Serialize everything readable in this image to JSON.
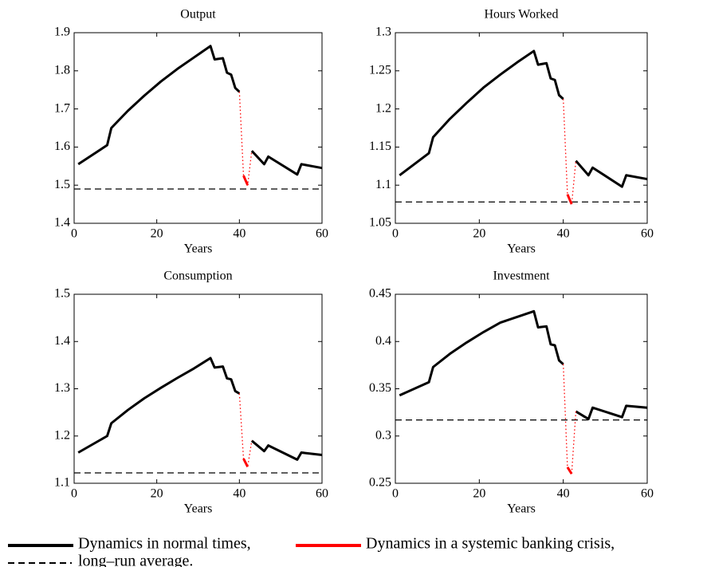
{
  "chart_data": [
    {
      "type": "line",
      "title": "Output",
      "xlabel": "Years",
      "xlim": [
        0,
        60
      ],
      "xticks": [
        0,
        20,
        40,
        60
      ],
      "ylim": [
        1.4,
        1.9
      ],
      "yticks": [
        1.4,
        1.5,
        1.6,
        1.7,
        1.8,
        1.9
      ],
      "x": [
        1,
        8,
        9,
        13,
        17,
        21,
        25,
        29,
        33,
        34,
        36,
        37,
        38,
        39,
        40,
        41,
        42,
        43,
        46,
        47,
        54,
        55,
        60
      ],
      "series": [
        {
          "color": "#000000",
          "style": "solid",
          "values": [
            1.555,
            1.605,
            1.65,
            1.695,
            1.735,
            1.772,
            1.805,
            1.835,
            1.865,
            1.83,
            1.833,
            1.795,
            1.79,
            1.755,
            1.745,
            null,
            null,
            1.59,
            1.555,
            1.575,
            1.528,
            1.555,
            1.545
          ]
        },
        {
          "color": "#ff0000",
          "style": "dotted",
          "values": [
            null,
            null,
            null,
            null,
            null,
            null,
            null,
            null,
            null,
            null,
            null,
            null,
            null,
            null,
            1.745,
            1.525,
            1.5,
            1.59,
            null,
            null,
            null,
            null,
            null
          ]
        },
        {
          "color": "#ff0000",
          "style": "solid",
          "values": [
            null,
            null,
            null,
            null,
            null,
            null,
            null,
            null,
            null,
            null,
            null,
            null,
            null,
            null,
            null,
            1.525,
            1.5,
            null,
            null,
            null,
            null,
            null,
            null
          ]
        }
      ],
      "average": 1.49
    },
    {
      "type": "line",
      "title": "Hours Worked",
      "xlabel": "Years",
      "xlim": [
        0,
        60
      ],
      "xticks": [
        0,
        20,
        40,
        60
      ],
      "ylim": [
        1.05,
        1.3
      ],
      "yticks": [
        1.05,
        1.1,
        1.15,
        1.2,
        1.25,
        1.3
      ],
      "x": [
        1,
        8,
        9,
        13,
        17,
        21,
        25,
        29,
        33,
        34,
        36,
        37,
        38,
        39,
        40,
        41,
        42,
        43,
        46,
        47,
        54,
        55,
        60
      ],
      "series": [
        {
          "color": "#000000",
          "style": "solid",
          "values": [
            1.113,
            1.142,
            1.163,
            1.187,
            1.208,
            1.228,
            1.245,
            1.261,
            1.276,
            1.258,
            1.26,
            1.24,
            1.238,
            1.218,
            1.213,
            null,
            null,
            1.132,
            1.113,
            1.123,
            1.098,
            1.113,
            1.108
          ]
        },
        {
          "color": "#ff0000",
          "style": "dotted",
          "values": [
            null,
            null,
            null,
            null,
            null,
            null,
            null,
            null,
            null,
            null,
            null,
            null,
            null,
            null,
            1.213,
            1.088,
            1.075,
            1.132,
            null,
            null,
            null,
            null,
            null
          ]
        },
        {
          "color": "#ff0000",
          "style": "solid",
          "values": [
            null,
            null,
            null,
            null,
            null,
            null,
            null,
            null,
            null,
            null,
            null,
            null,
            null,
            null,
            null,
            1.088,
            1.075,
            null,
            null,
            null,
            null,
            null,
            null
          ]
        }
      ],
      "average": 1.078
    },
    {
      "type": "line",
      "title": "Consumption",
      "xlabel": "Years",
      "xlim": [
        0,
        60
      ],
      "xticks": [
        0,
        20,
        40,
        60
      ],
      "ylim": [
        1.1,
        1.5
      ],
      "yticks": [
        1.1,
        1.2,
        1.3,
        1.4,
        1.5
      ],
      "x": [
        1,
        8,
        9,
        13,
        17,
        21,
        25,
        29,
        33,
        34,
        36,
        37,
        38,
        39,
        40,
        41,
        42,
        43,
        46,
        47,
        54,
        55,
        60
      ],
      "series": [
        {
          "color": "#000000",
          "style": "solid",
          "values": [
            1.165,
            1.2,
            1.227,
            1.255,
            1.28,
            1.302,
            1.323,
            1.343,
            1.365,
            1.345,
            1.347,
            1.322,
            1.32,
            1.295,
            1.29,
            null,
            null,
            1.19,
            1.168,
            1.18,
            1.15,
            1.165,
            1.16
          ]
        },
        {
          "color": "#ff0000",
          "style": "dotted",
          "values": [
            null,
            null,
            null,
            null,
            null,
            null,
            null,
            null,
            null,
            null,
            null,
            null,
            null,
            null,
            1.29,
            1.152,
            1.135,
            1.19,
            null,
            null,
            null,
            null,
            null
          ]
        },
        {
          "color": "#ff0000",
          "style": "solid",
          "values": [
            null,
            null,
            null,
            null,
            null,
            null,
            null,
            null,
            null,
            null,
            null,
            null,
            null,
            null,
            null,
            1.152,
            1.135,
            null,
            null,
            null,
            null,
            null,
            null
          ]
        }
      ],
      "average": 1.122
    },
    {
      "type": "line",
      "title": "Investment",
      "xlabel": "Years",
      "xlim": [
        0,
        60
      ],
      "xticks": [
        0,
        20,
        40,
        60
      ],
      "ylim": [
        0.25,
        0.45
      ],
      "yticks": [
        0.25,
        0.3,
        0.35,
        0.4,
        0.45
      ],
      "x": [
        1,
        8,
        9,
        13,
        17,
        21,
        25,
        29,
        33,
        34,
        36,
        37,
        38,
        39,
        40,
        41,
        42,
        43,
        46,
        47,
        54,
        55,
        60
      ],
      "series": [
        {
          "color": "#000000",
          "style": "solid",
          "values": [
            0.343,
            0.357,
            0.373,
            0.387,
            0.399,
            0.41,
            0.42,
            0.426,
            0.432,
            0.415,
            0.416,
            0.397,
            0.396,
            0.38,
            0.376,
            null,
            null,
            0.326,
            0.318,
            0.33,
            0.32,
            0.332,
            0.33
          ]
        },
        {
          "color": "#ff0000",
          "style": "dotted",
          "values": [
            null,
            null,
            null,
            null,
            null,
            null,
            null,
            null,
            null,
            null,
            null,
            null,
            null,
            null,
            0.376,
            0.267,
            0.26,
            0.326,
            null,
            null,
            null,
            null,
            null
          ]
        },
        {
          "color": "#ff0000",
          "style": "solid",
          "values": [
            null,
            null,
            null,
            null,
            null,
            null,
            null,
            null,
            null,
            null,
            null,
            null,
            null,
            null,
            null,
            0.267,
            0.26,
            null,
            null,
            null,
            null,
            null,
            null
          ]
        }
      ],
      "average": 0.317
    }
  ],
  "legend": [
    {
      "label": "Dynamics in normal times,",
      "color": "#000000",
      "style": "solid"
    },
    {
      "label": "Dynamics in a systemic banking crisis,",
      "color": "#ff0000",
      "style": "solid"
    },
    {
      "label": "long–run average.",
      "color": "#000000",
      "style": "dashed"
    }
  ]
}
